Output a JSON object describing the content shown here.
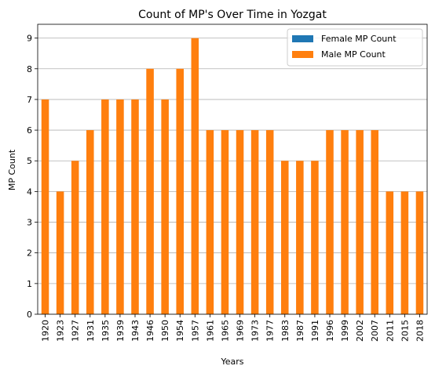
{
  "chart_data": {
    "type": "bar",
    "stacked": true,
    "title": "Count of MP's Over Time in Yozgat",
    "xlabel": "Years",
    "ylabel": "MP Count",
    "ylim": [
      0,
      9.45
    ],
    "yticks": [
      0,
      1,
      2,
      3,
      4,
      5,
      6,
      7,
      8,
      9
    ],
    "grid": "horizontal",
    "legend_position": "top-right",
    "categories": [
      "1920",
      "1923",
      "1927",
      "1931",
      "1935",
      "1939",
      "1943",
      "1946",
      "1950",
      "1954",
      "1957",
      "1961",
      "1965",
      "1969",
      "1973",
      "1977",
      "1983",
      "1987",
      "1991",
      "1996",
      "1999",
      "2002",
      "2007",
      "2011",
      "2015",
      "2018"
    ],
    "series": [
      {
        "name": "Female MP Count",
        "color": "#1f77b4",
        "values": [
          0,
          0,
          0,
          0,
          0,
          0,
          0,
          0,
          0,
          0,
          0,
          0,
          0,
          0,
          0,
          0,
          0,
          0,
          0,
          0,
          0,
          0,
          0,
          0,
          0,
          0
        ]
      },
      {
        "name": "Male MP Count",
        "color": "#ff7f0e",
        "values": [
          7,
          4,
          5,
          6,
          7,
          7,
          7,
          8,
          7,
          8,
          9,
          6,
          6,
          6,
          6,
          6,
          5,
          5,
          5,
          6,
          6,
          6,
          6,
          4,
          4,
          4
        ]
      }
    ]
  }
}
